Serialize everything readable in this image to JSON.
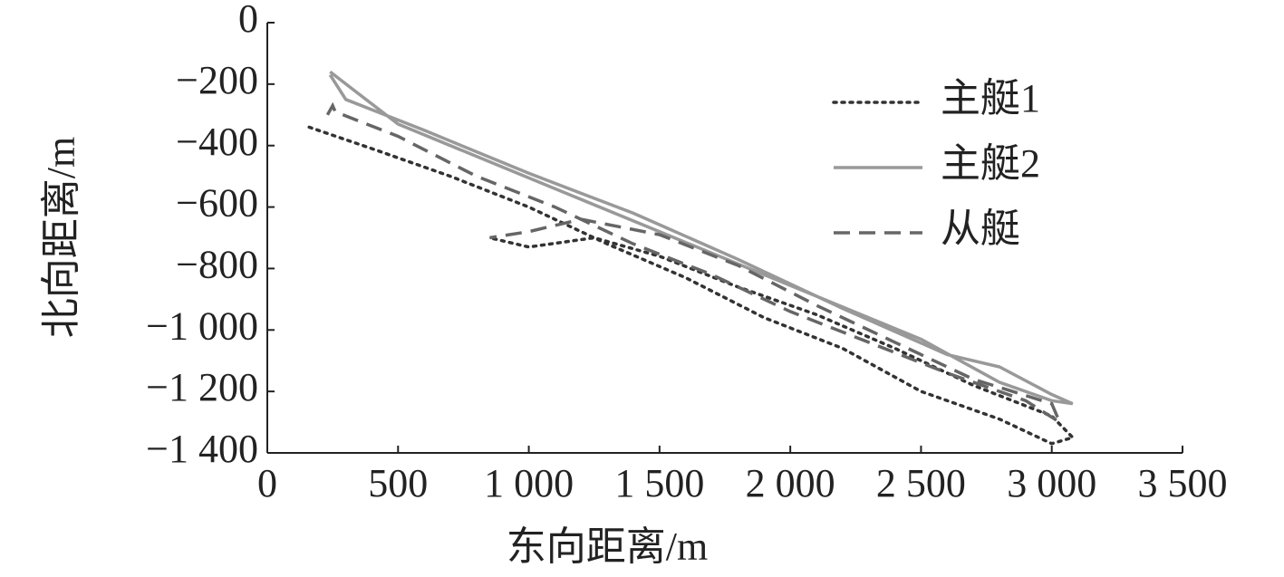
{
  "chart_data": {
    "type": "line",
    "xlabel": "东向距离/m",
    "ylabel": "北向距离/m",
    "xlim": [
      0,
      3500
    ],
    "ylim": [
      -1400,
      0
    ],
    "xticks": [
      0,
      500,
      {
        "value": 1000,
        "label": "1 000"
      },
      {
        "value": 1500,
        "label": "1 500"
      },
      {
        "value": 2000,
        "label": "2 000"
      },
      {
        "value": 2500,
        "label": "2 500"
      },
      {
        "value": 3000,
        "label": "3 000"
      },
      {
        "value": 3500,
        "label": "3 500"
      }
    ],
    "yticks": [
      0,
      {
        "value": -200,
        "label": "−200"
      },
      {
        "value": -400,
        "label": "−400"
      },
      {
        "value": -600,
        "label": "−600"
      },
      {
        "value": -800,
        "label": "−800"
      },
      {
        "value": -1000,
        "label": "−1 000"
      },
      {
        "value": -1200,
        "label": "−1 200"
      },
      {
        "value": -1400,
        "label": "−1 400"
      }
    ],
    "legend": "upper right",
    "series": [
      {
        "name": "主艇1",
        "color": "#333333",
        "style": "dotted",
        "x": [
          160,
          400,
          700,
          1000,
          1300,
          1600,
          1900,
          2200,
          2500,
          2800,
          3000,
          3080,
          3000,
          2700,
          2400,
          2100,
          1800,
          1500,
          1250,
          1000,
          850
        ],
        "values": [
          -340,
          -410,
          -500,
          -600,
          -720,
          -830,
          -960,
          -1060,
          -1200,
          -1290,
          -1370,
          -1350,
          -1280,
          -1180,
          -1060,
          -950,
          -860,
          -760,
          -700,
          -730,
          -700
        ]
      },
      {
        "name": "主艇2",
        "color": "#999999",
        "style": "solid",
        "x": [
          240,
          300,
          600,
          1000,
          1400,
          1800,
          2200,
          2600,
          2800,
          3000,
          3080,
          3000,
          2800,
          2500,
          2100,
          1700,
          1300,
          900,
          500,
          240
        ],
        "values": [
          -170,
          -250,
          -350,
          -490,
          -620,
          -770,
          -930,
          -1080,
          -1120,
          -1210,
          -1240,
          -1230,
          -1170,
          -1030,
          -890,
          -750,
          -610,
          -470,
          -330,
          -160
        ]
      },
      {
        "name": "从艇",
        "color": "#666666",
        "style": "dashed",
        "x": [
          230,
          250,
          260,
          500,
          800,
          1100,
          1400,
          1700,
          2000,
          2300,
          2600,
          2900,
          3030,
          3000,
          2700,
          2400,
          2100,
          1800,
          1500,
          1200,
          1000,
          850
        ],
        "values": [
          -300,
          -270,
          -290,
          -370,
          -500,
          -600,
          -720,
          -820,
          -940,
          -1040,
          -1140,
          -1230,
          -1300,
          -1240,
          -1160,
          -1040,
          -920,
          -790,
          -690,
          -640,
          -680,
          -700
        ]
      }
    ]
  }
}
